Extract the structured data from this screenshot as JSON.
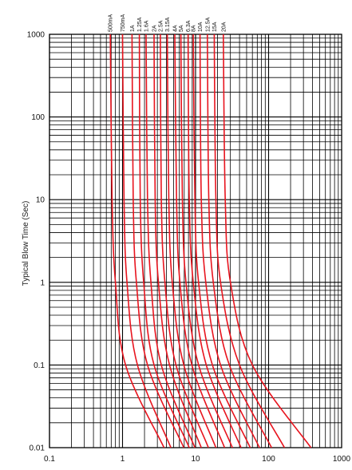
{
  "chart_data": {
    "type": "line",
    "title": "",
    "xlabel": "",
    "ylabel": "Typical Blow Time (Sec)",
    "x_scale": "log",
    "y_scale": "log",
    "xlim": [
      0.1,
      1000
    ],
    "ylim": [
      0.01,
      1000
    ],
    "x_ticks": [
      "0.1",
      "1",
      "10",
      "100",
      "1000"
    ],
    "y_ticks": [
      "0.01",
      "0.1",
      "1",
      "10",
      "100",
      "1000"
    ],
    "grid": true,
    "legend": "none",
    "colors": {
      "curve": "#e8141e",
      "grid": "#000000"
    },
    "series": [
      {
        "name": "500mA",
        "points": [
          [
            0.68,
            1000
          ],
          [
            0.72,
            10
          ],
          [
            0.8,
            1
          ],
          [
            1.1,
            0.1
          ],
          [
            3.7,
            0.01
          ]
        ]
      },
      {
        "name": "750mA",
        "points": [
          [
            1.0,
            1000
          ],
          [
            1.05,
            10
          ],
          [
            1.15,
            1
          ],
          [
            1.6,
            0.1
          ],
          [
            4.6,
            0.01
          ]
        ]
      },
      {
        "name": "1A",
        "points": [
          [
            1.35,
            1000
          ],
          [
            1.4,
            10
          ],
          [
            1.55,
            1
          ],
          [
            2.2,
            0.1
          ],
          [
            6.9,
            0.01
          ]
        ]
      },
      {
        "name": "1.25A",
        "points": [
          [
            1.7,
            1000
          ],
          [
            1.75,
            10
          ],
          [
            1.95,
            1
          ],
          [
            2.7,
            0.1
          ],
          [
            8.2,
            0.01
          ]
        ]
      },
      {
        "name": "1.6A",
        "points": [
          [
            2.1,
            1000
          ],
          [
            2.2,
            10
          ],
          [
            2.45,
            1
          ],
          [
            3.4,
            0.1
          ],
          [
            9.8,
            0.01
          ]
        ]
      },
      {
        "name": "2A",
        "points": [
          [
            2.7,
            1000
          ],
          [
            2.8,
            10
          ],
          [
            3.1,
            1
          ],
          [
            4.4,
            0.1
          ],
          [
            12,
            0.01
          ]
        ]
      },
      {
        "name": "2.5A",
        "points": [
          [
            3.3,
            1000
          ],
          [
            3.4,
            10
          ],
          [
            3.8,
            1
          ],
          [
            5.4,
            0.1
          ],
          [
            15,
            0.01
          ]
        ]
      },
      {
        "name": "3.15A",
        "points": [
          [
            4.1,
            1000
          ],
          [
            4.3,
            10
          ],
          [
            4.8,
            1
          ],
          [
            6.9,
            0.1
          ],
          [
            19,
            0.01
          ]
        ]
      },
      {
        "name": "4A",
        "points": [
          [
            5.2,
            1000
          ],
          [
            5.5,
            10
          ],
          [
            6.1,
            1
          ],
          [
            8.9,
            0.1
          ],
          [
            25,
            0.01
          ]
        ]
      },
      {
        "name": "5A",
        "points": [
          [
            6.3,
            1000
          ],
          [
            6.6,
            10
          ],
          [
            7.4,
            1
          ],
          [
            11,
            0.1
          ],
          [
            32,
            0.01
          ]
        ]
      },
      {
        "name": "6.3A",
        "points": [
          [
            7.9,
            1000
          ],
          [
            8.2,
            10
          ],
          [
            9.3,
            1
          ],
          [
            14,
            0.1
          ],
          [
            42,
            0.01
          ]
        ]
      },
      {
        "name": "8A",
        "points": [
          [
            9.3,
            1000
          ],
          [
            9.8,
            10
          ],
          [
            11,
            1
          ],
          [
            17,
            0.1
          ],
          [
            56,
            0.01
          ]
        ]
      },
      {
        "name": "10A",
        "points": [
          [
            11.5,
            1000
          ],
          [
            12,
            10
          ],
          [
            13.8,
            1
          ],
          [
            22,
            0.1
          ],
          [
            75,
            0.01
          ]
        ]
      },
      {
        "name": "12.5A",
        "points": [
          [
            14.5,
            1000
          ],
          [
            15.2,
            10
          ],
          [
            17.5,
            1
          ],
          [
            29,
            0.1
          ],
          [
            110,
            0.01
          ]
        ]
      },
      {
        "name": "15A",
        "points": [
          [
            18,
            1000
          ],
          [
            19,
            10
          ],
          [
            22,
            1
          ],
          [
            40,
            0.1
          ],
          [
            165,
            0.01
          ]
        ]
      },
      {
        "name": "20A",
        "points": [
          [
            24,
            1000
          ],
          [
            25.5,
            10
          ],
          [
            30,
            1
          ],
          [
            60,
            0.1
          ],
          [
            380,
            0.01
          ]
        ]
      }
    ]
  }
}
